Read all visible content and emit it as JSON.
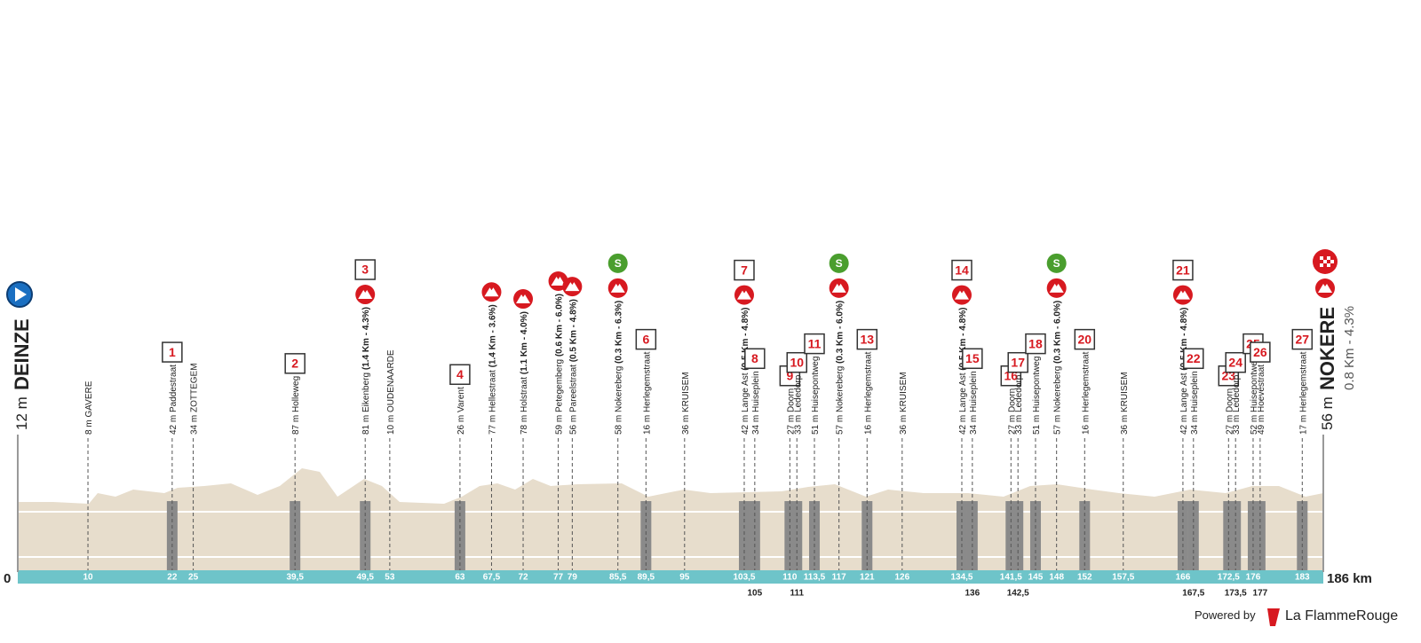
{
  "start": {
    "elevation": "12 m",
    "name": "DEINZE",
    "km": "0"
  },
  "finish": {
    "elevation": "56 m",
    "name": "NOKERE",
    "climb": "0.8 Km - 4.3%",
    "km": "186 km"
  },
  "km_range": [
    0,
    186
  ],
  "points": [
    {
      "km": {
        "value": 10,
        "label": "10"
      },
      "label": "8 m GAVERE"
    },
    {
      "km": {
        "value": 22,
        "label": "22"
      },
      "label": "42 m Paddestraat",
      "sector": "1"
    },
    {
      "km": {
        "value": 25,
        "label": "25"
      },
      "label": "34 m ZOTTEGEM"
    },
    {
      "km": {
        "value": 39.5,
        "label": "39,5"
      },
      "label": "87 m Holleweg",
      "sector": "2"
    },
    {
      "km": {
        "value": 49.5,
        "label": "49,5"
      },
      "label": "81 m Eikenberg",
      "climb": "(1.4 Km - 4.3%)",
      "sector": "3"
    },
    {
      "km": {
        "value": 53,
        "label": "53"
      },
      "label": "10 m OUDENAARDE"
    },
    {
      "km": {
        "value": 63,
        "label": "63"
      },
      "label": "26 m Varent",
      "sector": "4"
    },
    {
      "km": {
        "value": 67.5,
        "label": "67,5"
      },
      "label": "77 m Hellestraat",
      "climb": "(1.4 Km - 3.6%)"
    },
    {
      "km": {
        "value": 72,
        "label": "72"
      },
      "label": "78 m Holstraat",
      "climb": "(1.1 Km - 4.0%)"
    },
    {
      "km": {
        "value": 77,
        "label": "77"
      },
      "label": "59 m Petegemberg",
      "climb": "(0.6 Km - 6.0%)"
    },
    {
      "km": {
        "value": 79,
        "label": "79"
      },
      "label": "56 m Pareelstraat",
      "climb": "(0.5 Km - 4.8%)"
    },
    {
      "km": {
        "value": 85.5,
        "label": "85,5"
      },
      "label": "58 m Nokereberg",
      "climb": "(0.3 Km - 6.3%)",
      "sprint": "S"
    },
    {
      "km": {
        "value": 89.5,
        "label": "89,5"
      },
      "label": "16 m Herlegemstraat",
      "sector": "6"
    },
    {
      "km": {
        "value": 95,
        "label": "95"
      },
      "label": "36 m KRUISEM"
    },
    {
      "km": {
        "value": 103.5,
        "label": "103,5"
      },
      "label": "42 m Lange Ast",
      "climb": "(0.5 Km - 4.8%)",
      "sector": "7"
    },
    {
      "km": {
        "value": 105,
        "label": "105"
      },
      "label": "34 m Huiseplein",
      "sector": "8"
    },
    {
      "km": {
        "value": 110,
        "label": "110"
      },
      "label": "27 m Doorn",
      "sector": "9"
    },
    {
      "km": {
        "value": 111,
        "label": "111"
      },
      "label": "33 m Lededorp",
      "sector": "10"
    },
    {
      "km": {
        "value": 113.5,
        "label": "113,5"
      },
      "label": "51 m Huisepontweg",
      "sector": "11"
    },
    {
      "km": {
        "value": 117,
        "label": "117"
      },
      "label": "57 m Nokereberg",
      "climb": "(0.3 Km - 6.0%)",
      "sprint": "S"
    },
    {
      "km": {
        "value": 121,
        "label": "121"
      },
      "label": "16 m Herlegemstraat",
      "sector": "13"
    },
    {
      "km": {
        "value": 126,
        "label": "126"
      },
      "label": "36 m KRUISEM"
    },
    {
      "km": {
        "value": 134.5,
        "label": "134,5"
      },
      "label": "42 m Lange Ast",
      "climb": "(0.5 Km - 4.8%)",
      "sector": "14"
    },
    {
      "km": {
        "value": 136,
        "label": "136"
      },
      "label": "34 m Huiseplein",
      "sector": "15"
    },
    {
      "km": {
        "value": 141.5,
        "label": "141,5"
      },
      "label": "27 m Doorn",
      "sector": "16"
    },
    {
      "km": {
        "value": 142.5,
        "label": "142,5"
      },
      "label": "33 m Lededorp",
      "sector": "17"
    },
    {
      "km": {
        "value": 145,
        "label": "145"
      },
      "label": "51 m Huisepontweg",
      "sector": "18"
    },
    {
      "km": {
        "value": 148,
        "label": "148"
      },
      "label": "57 m Nokereberg",
      "climb": "(0.3 Km - 6.0%)",
      "sprint": "S"
    },
    {
      "km": {
        "value": 152,
        "label": "152"
      },
      "label": "16 m Herlegemstraat",
      "sector": "20"
    },
    {
      "km": {
        "value": 157.5,
        "label": "157,5"
      },
      "label": "36 m KRUISEM"
    },
    {
      "km": {
        "value": 166,
        "label": "166"
      },
      "label": "42 m Lange Ast",
      "climb": "(0.5 Km - 4.8%)",
      "sector": "21"
    },
    {
      "km": {
        "value": 167.5,
        "label": "167,5"
      },
      "label": "34 m Huiseplein",
      "sector": "22"
    },
    {
      "km": {
        "value": 172.5,
        "label": "172,5"
      },
      "label": "27 m Doorn",
      "sector": "23"
    },
    {
      "km": {
        "value": 173.5,
        "label": "173,5"
      },
      "label": "33 m Lededorp",
      "sector": "24"
    },
    {
      "km": {
        "value": 176,
        "label": "176"
      },
      "label": "52 m Huisepontweg",
      "sector": "25"
    },
    {
      "km": {
        "value": 177,
        "label": "177"
      },
      "label": "49 m Hoevestraat",
      "sector": "26"
    },
    {
      "km": {
        "value": 183,
        "label": "183"
      },
      "label": "17 m Herlegemstraat",
      "sector": "27"
    }
  ],
  "footer": {
    "powered": "Powered by",
    "brand": "La FlammeRouge"
  }
}
